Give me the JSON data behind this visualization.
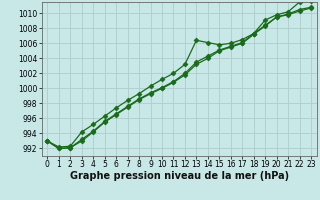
{
  "xlabel": "Graphe pression niveau de la mer (hPa)",
  "background_color": "#c8e8e8",
  "grid_color": "#b0cccc",
  "line_color": "#1a6b1a",
  "xlim": [
    -0.5,
    23.5
  ],
  "ylim": [
    991.0,
    1011.5
  ],
  "xticks": [
    0,
    1,
    2,
    3,
    4,
    5,
    6,
    7,
    8,
    9,
    10,
    11,
    12,
    13,
    14,
    15,
    16,
    17,
    18,
    19,
    20,
    21,
    22,
    23
  ],
  "yticks": [
    992,
    994,
    996,
    998,
    1000,
    1002,
    1004,
    1006,
    1008,
    1010
  ],
  "line1": [
    993.0,
    992.2,
    992.3,
    994.2,
    995.2,
    996.3,
    997.4,
    998.4,
    999.3,
    1000.3,
    1001.2,
    1002.0,
    1003.2,
    1006.4,
    1006.1,
    1005.8,
    1006.0,
    1006.5,
    1007.3,
    1009.1,
    1009.8,
    1010.2,
    1011.5,
    1011.6
  ],
  "line2": [
    993.0,
    992.0,
    992.1,
    993.0,
    994.2,
    995.5,
    996.5,
    997.5,
    998.5,
    999.3,
    1000.0,
    1000.8,
    1001.8,
    1003.2,
    1004.0,
    1005.0,
    1005.5,
    1006.0,
    1007.2,
    1008.3,
    1009.5,
    1009.8,
    1010.3,
    1010.7
  ],
  "line3": [
    993.0,
    992.0,
    992.1,
    993.2,
    994.3,
    995.6,
    996.6,
    997.6,
    998.6,
    999.4,
    1000.1,
    1000.9,
    1002.0,
    1003.5,
    1004.3,
    1005.1,
    1005.6,
    1006.1,
    1007.3,
    1008.4,
    1009.5,
    1009.9,
    1010.5,
    1010.8
  ],
  "marker": "D",
  "marker_size": 2.5,
  "linewidth": 0.9,
  "xlabel_fontsize": 7,
  "tick_fontsize": 5.5
}
